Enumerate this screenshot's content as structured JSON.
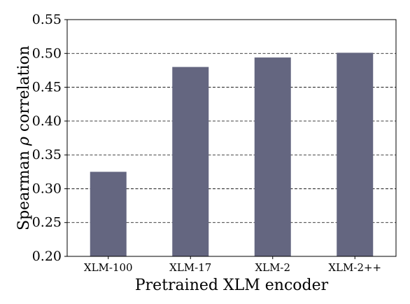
{
  "chart_data": {
    "type": "bar",
    "categories": [
      "XLM-100",
      "XLM-17",
      "XLM-2",
      "XLM-2++"
    ],
    "values": [
      0.325,
      0.48,
      0.494,
      0.501
    ],
    "xlabel": "Pretrained XLM encoder",
    "ylabel_prefix": "Spearman ",
    "ylabel_symbol": "ρ",
    "ylabel_suffix": " correlation",
    "ylim": [
      0.2,
      0.55
    ],
    "yticks": [
      "0.20",
      "0.25",
      "0.30",
      "0.35",
      "0.40",
      "0.45",
      "0.50",
      "0.55"
    ],
    "grid": "horizontal dashed",
    "bar_color": "#646680"
  }
}
